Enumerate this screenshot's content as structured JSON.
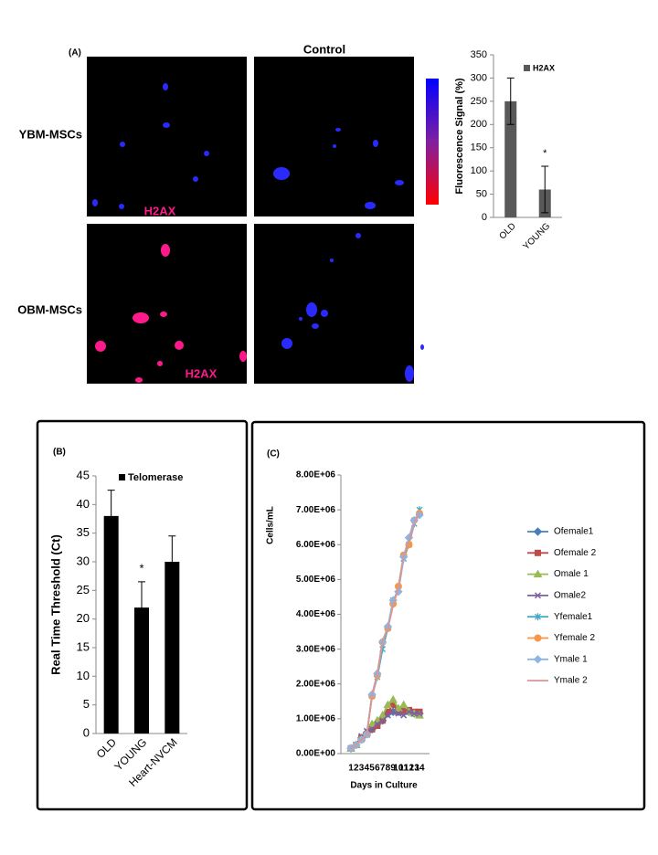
{
  "figure": {
    "label": "(A)",
    "column_title": "Control",
    "rows": [
      "YBM-MSCs",
      "OBM-MSCs"
    ],
    "stain_labels": [
      "H2AX",
      "H2AX"
    ]
  },
  "chart_data": [
    {
      "type": "bar",
      "categories": [
        "OLD",
        "YOUNG"
      ],
      "ylabel": "Fluorescence Signal (%)",
      "series": [
        {
          "name": "H2AX",
          "color": "#595959",
          "values": [
            250,
            60
          ],
          "errors": [
            50,
            50
          ]
        }
      ],
      "ylim": [
        0,
        350
      ],
      "yticks": [
        0,
        50,
        100,
        150,
        200,
        250,
        300,
        350
      ],
      "annotation": "*"
    },
    {
      "type": "bar",
      "label": "(B)",
      "categories": [
        "OLD",
        "YOUNG",
        "Heart-NVCM"
      ],
      "ylabel": "Real Time Threshold (Ct)",
      "series": [
        {
          "name": "Telomerase",
          "color": "#000000",
          "values": [
            38,
            22,
            30
          ],
          "errors": [
            4.5,
            4.5,
            4.5
          ]
        }
      ],
      "ylim": [
        0,
        45
      ],
      "yticks": [
        0,
        5,
        10,
        15,
        20,
        25,
        30,
        35,
        40,
        45
      ],
      "annotation": "*"
    },
    {
      "type": "line",
      "label": "(C)",
      "xlabel": "Days in Culture",
      "ylabel": "Cells/mL",
      "categories": [
        "1",
        "2",
        "3",
        "4",
        "5",
        "6",
        "7",
        "8",
        "9",
        "10",
        "11",
        "12",
        "13",
        "14"
      ],
      "ylim": [
        0,
        8000000
      ],
      "yticks": [
        {
          "value": 0,
          "label": "0.00E+00"
        },
        {
          "value": 1000000,
          "label": "1.00E+06"
        },
        {
          "value": 2000000,
          "label": "2.00E+06"
        },
        {
          "value": 3000000,
          "label": "3.00E+06"
        },
        {
          "value": 4000000,
          "label": "4.00E+06"
        },
        {
          "value": 5000000,
          "label": "5.00E+06"
        },
        {
          "value": 6000000,
          "label": "6.00E+06"
        },
        {
          "value": 7000000,
          "label": "7.00E+06"
        },
        {
          "value": 8000000,
          "label": "8.00E+06"
        }
      ],
      "series": [
        {
          "name": "Ofemale1",
          "color": "#4a7ebb",
          "marker": "diamond",
          "values": [
            150000,
            250000,
            450000,
            600000,
            700000,
            850000,
            950000,
            1150000,
            1200000,
            1200000,
            1250000,
            1200000,
            1150000,
            1150000
          ]
        },
        {
          "name": "Ofemale 2",
          "color": "#be4b48",
          "marker": "square",
          "values": [
            150000,
            250000,
            450000,
            550000,
            700000,
            800000,
            950000,
            1200000,
            1400000,
            1200000,
            1250000,
            1250000,
            1200000,
            1200000
          ]
        },
        {
          "name": "Omale 1",
          "color": "#98b954",
          "marker": "triangle",
          "values": [
            150000,
            250000,
            450000,
            600000,
            850000,
            950000,
            1100000,
            1400000,
            1550000,
            1300000,
            1400000,
            1200000,
            1150000,
            1100000
          ]
        },
        {
          "name": "Omale2",
          "color": "#7d60a0",
          "marker": "x",
          "values": [
            150000,
            250000,
            500000,
            650000,
            700000,
            850000,
            950000,
            1100000,
            1200000,
            1150000,
            1100000,
            1200000,
            1150000,
            1150000
          ]
        },
        {
          "name": "Yfemale1",
          "color": "#46aac5",
          "marker": "star",
          "values": [
            150000,
            250000,
            400000,
            550000,
            1650000,
            2200000,
            3000000,
            3600000,
            4400000,
            4700000,
            5600000,
            6000000,
            6600000,
            7000000
          ]
        },
        {
          "name": "Yfemale 2",
          "color": "#f79646",
          "marker": "circle",
          "values": [
            150000,
            250000,
            400000,
            550000,
            1650000,
            2250000,
            3200000,
            3600000,
            4300000,
            4800000,
            5700000,
            6000000,
            6700000,
            6900000
          ]
        },
        {
          "name": "Ymale 1",
          "color": "#8eb4e3",
          "marker": "diamond",
          "values": [
            150000,
            250000,
            400000,
            550000,
            1700000,
            2300000,
            3200000,
            3650000,
            4400000,
            4650000,
            5650000,
            6200000,
            6700000,
            6850000
          ]
        },
        {
          "name": "Ymale 2",
          "color": "#d99694",
          "marker": "none",
          "values": [
            150000,
            250000,
            400000,
            550000,
            1650000,
            2300000,
            3250000,
            3600000,
            4250000,
            4750000,
            5700000,
            6100000,
            6600000,
            6900000
          ]
        }
      ]
    }
  ]
}
